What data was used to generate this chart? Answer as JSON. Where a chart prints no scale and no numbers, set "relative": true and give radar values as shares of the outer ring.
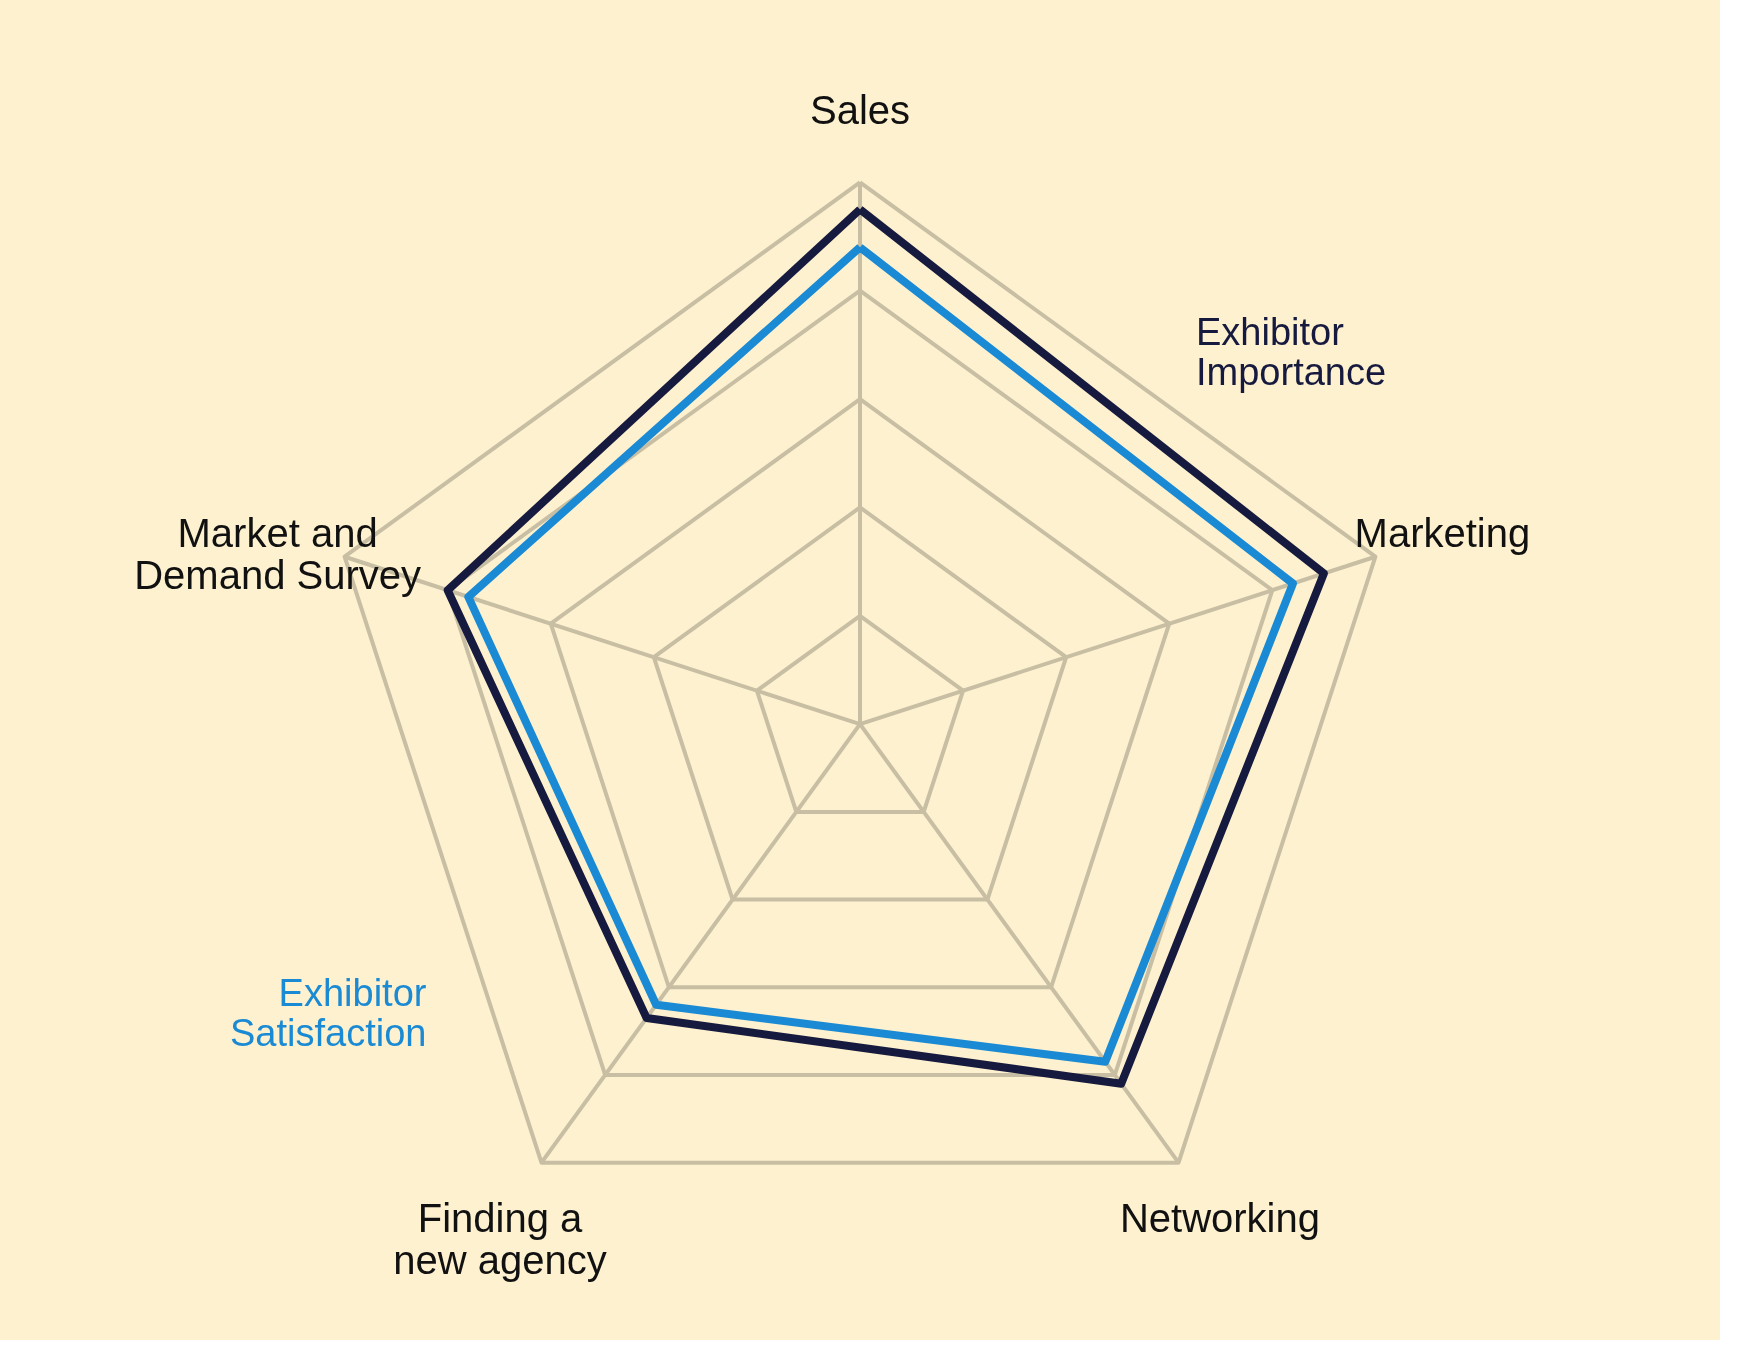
{
  "chart_data": {
    "type": "radar",
    "relative": true,
    "grid": true,
    "categories": [
      "Sales",
      "Marketing",
      "Networking",
      "Finding a\nnew agency",
      "Market and\nDemand Survey"
    ],
    "series": [
      {
        "name": "Exhibitor\nImportance",
        "color": "#161a3e",
        "values": [
          0.95,
          0.9,
          0.82,
          0.67,
          0.8
        ]
      },
      {
        "name": "Exhibitor\nSatisfaction",
        "color": "#1a8ad4",
        "values": [
          0.88,
          0.84,
          0.77,
          0.64,
          0.76
        ]
      }
    ]
  }
}
